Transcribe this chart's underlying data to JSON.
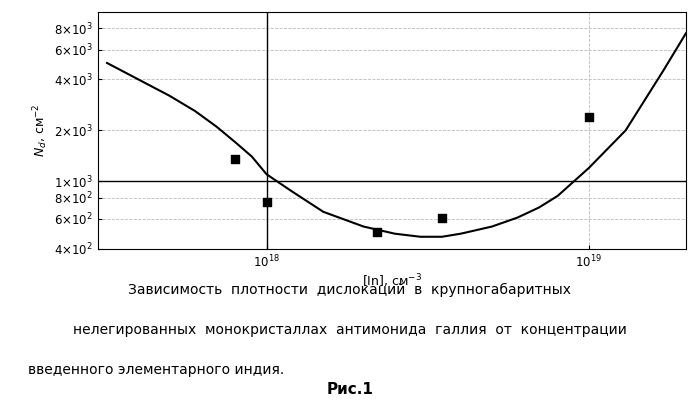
{
  "xlim": [
    3e+17,
    2e+19
  ],
  "ylim": [
    400.0,
    10000.0
  ],
  "hline_y": 1000,
  "vline_x": 1e+18,
  "scatter_points": [
    [
      8e+17,
      1350
    ],
    [
      1e+18,
      750
    ],
    [
      2.2e+18,
      500
    ],
    [
      3.5e+18,
      610
    ],
    [
      1e+19,
      2400
    ]
  ],
  "curve_x": [
    3.2e+17,
    4e+17,
    5e+17,
    6e+17,
    7e+17,
    8e+17,
    9e+17,
    1e+18,
    1.2e+18,
    1.5e+18,
    2e+18,
    2.5e+18,
    3e+18,
    3.5e+18,
    4e+18,
    5e+18,
    6e+18,
    7e+18,
    8e+18,
    1e+19,
    1.3e+19,
    1.7e+19,
    2e+19
  ],
  "curve_y": [
    5000,
    4000,
    3200,
    2600,
    2100,
    1700,
    1400,
    1100,
    870,
    660,
    540,
    490,
    470,
    470,
    490,
    540,
    610,
    700,
    820,
    1200,
    2000,
    4500,
    7500
  ],
  "ylabel": "$N_d$, см$^{-2}$",
  "xlabel": "[In], см$^{-3}$",
  "caption_line1": "Зависимость  плотности  дислокаций  в  крупногабаритных",
  "caption_line2": "нелегированных  монокристаллах  антимонида  галлия  от  концентрации",
  "caption_line3": "введенного элементарного индия.",
  "fig_label": "Рис.1",
  "background_color": "#ffffff",
  "line_color": "#000000",
  "marker_color": "#000000",
  "grid_color": "#bbbbbb",
  "yticks": [
    400,
    600,
    800,
    1000,
    2000,
    4000,
    6000,
    8000
  ],
  "ytick_labels": [
    "4x10²",
    "6x10²",
    "8x10²",
    "1x10³",
    "2x10³",
    "4x10³",
    "6x10³",
    "8x10³"
  ],
  "xticks": [
    1e+18,
    1e+19
  ],
  "xtick_labels": [
    "10¹⁸",
    "10¹⁹"
  ]
}
